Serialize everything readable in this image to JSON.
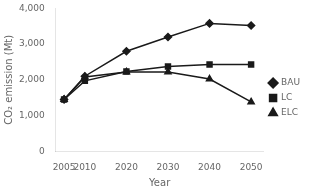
{
  "chart_data": {
    "type": "line",
    "x": [
      2005,
      2010,
      2020,
      2030,
      2040,
      2050
    ],
    "series": [
      {
        "name": "BAU",
        "color": "#1a1a1a",
        "marker": "diamond",
        "values": [
          1450,
          2100,
          2800,
          3200,
          3580,
          3520
        ]
      },
      {
        "name": "LC",
        "color": "#1a1a1a",
        "marker": "square",
        "values": [
          1450,
          1970,
          2230,
          2370,
          2430,
          2430
        ]
      },
      {
        "name": "ELC",
        "color": "#1a1a1a",
        "marker": "triangle",
        "values": [
          1450,
          2080,
          2220,
          2220,
          2020,
          1380
        ]
      }
    ],
    "xlabel": "Year",
    "ylabel": "CO₂ emission (Mt)",
    "xlim": [
      2003,
      2053
    ],
    "xticks": [
      2005,
      2010,
      2020,
      2030,
      2040,
      2050
    ],
    "ylim": [
      0,
      4000
    ],
    "yticks": [
      0,
      {
        "value": 1000,
        "label": "1,000"
      },
      {
        "value": 2000,
        "label": "2,000"
      },
      {
        "value": 3000,
        "label": "3,000"
      },
      {
        "value": 4000,
        "label": "4,000"
      }
    ],
    "grid": false,
    "legend": "right"
  }
}
